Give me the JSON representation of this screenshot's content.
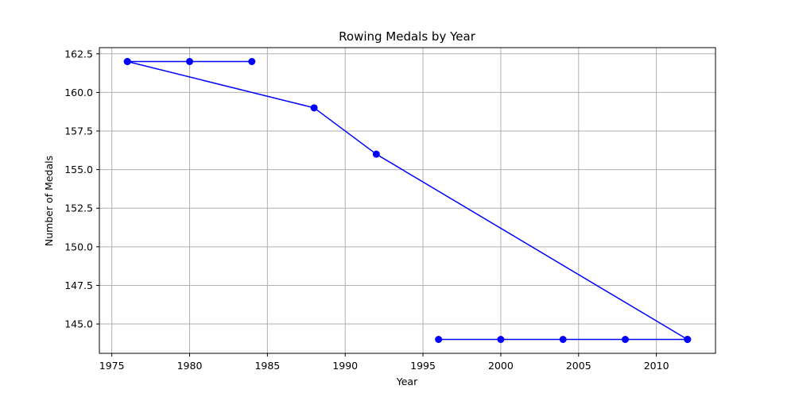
{
  "chart_data": {
    "type": "line",
    "title": "Rowing Medals by Year",
    "xlabel": "Year",
    "ylabel": "Number of Medals",
    "x": [
      1976,
      1980,
      1984,
      1976,
      1988,
      1992,
      2012,
      1996,
      2000,
      2004,
      2008,
      2012
    ],
    "series": [
      {
        "values": [
          162,
          162,
          162,
          162,
          159,
          156,
          144,
          144,
          144,
          144,
          144,
          144
        ],
        "color": "#0000ff",
        "marker": "circle"
      }
    ],
    "xlim": [
      1974.2,
      2013.8
    ],
    "ylim": [
      143.1,
      162.9
    ],
    "xticks": [
      1975,
      1980,
      1985,
      1990,
      1995,
      2000,
      2005,
      2010
    ],
    "xtick_labels": [
      "1975",
      "1980",
      "1985",
      "1990",
      "1995",
      "2000",
      "2005",
      "2010"
    ],
    "yticks": [
      145.0,
      147.5,
      150.0,
      152.5,
      155.0,
      157.5,
      160.0,
      162.5
    ],
    "ytick_labels": [
      "145.0",
      "147.5",
      "150.0",
      "152.5",
      "155.0",
      "157.5",
      "160.0",
      "162.5"
    ],
    "grid": true
  }
}
